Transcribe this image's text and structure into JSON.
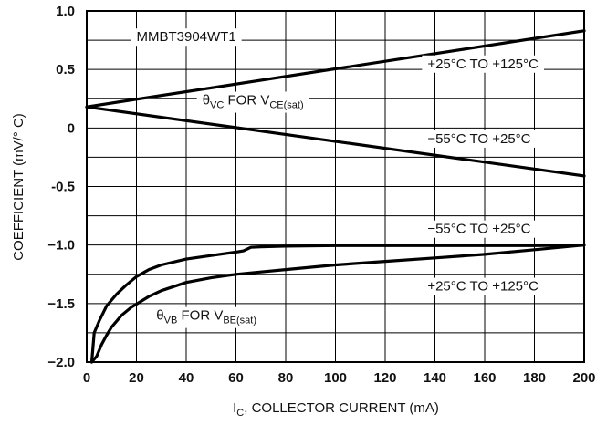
{
  "chart_data": {
    "type": "line",
    "xlabel": {
      "main": "I",
      "sub": "C",
      "rest": ", COLLECTOR CURRENT (mA)"
    },
    "ylabel": "COEFFICIENT (mV/° C)",
    "xlim": [
      0,
      200
    ],
    "ylim": [
      -2.0,
      1.0
    ],
    "x_ticks": [
      0,
      20,
      40,
      60,
      80,
      100,
      120,
      140,
      160,
      180,
      200
    ],
    "x_tick_labels": [
      "0",
      "20",
      "40",
      "60",
      "80",
      "100",
      "120",
      "140",
      "160",
      "180",
      "200"
    ],
    "y_ticks": [
      -2.0,
      -1.5,
      -1.0,
      -0.5,
      0,
      0.5,
      1.0
    ],
    "y_tick_labels": [
      "−2.0",
      "−1.5",
      "−1.0",
      "-0.5",
      "0",
      "0.5",
      "1.0"
    ],
    "grid": true,
    "series": [
      {
        "name": "θVC +25°C TO +125°C",
        "x": [
          0,
          200
        ],
        "y": [
          0.18,
          0.83
        ]
      },
      {
        "name": "θVC −55°C TO +25°C",
        "x": [
          0,
          200
        ],
        "y": [
          0.18,
          -0.41
        ]
      },
      {
        "name": "θVB −55°C TO +25°C",
        "x": [
          2,
          3,
          5,
          8,
          12,
          16,
          20,
          25,
          30,
          40,
          50,
          60,
          63,
          66,
          70,
          80,
          100,
          120,
          140,
          160,
          180,
          200
        ],
        "y": [
          -2.0,
          -1.75,
          -1.65,
          -1.52,
          -1.42,
          -1.34,
          -1.27,
          -1.21,
          -1.17,
          -1.12,
          -1.09,
          -1.06,
          -1.05,
          -1.02,
          -1.015,
          -1.01,
          -1.005,
          -1.005,
          -1.005,
          -1.005,
          -1.005,
          -1.0
        ]
      },
      {
        "name": "θVB +25°C TO +125°C",
        "x": [
          2,
          4,
          6,
          8,
          10,
          14,
          18,
          25,
          30,
          40,
          50,
          60,
          70,
          80,
          100,
          120,
          140,
          160,
          180,
          200
        ],
        "y": [
          -2.0,
          -1.95,
          -1.85,
          -1.77,
          -1.7,
          -1.6,
          -1.53,
          -1.44,
          -1.39,
          -1.32,
          -1.28,
          -1.25,
          -1.23,
          -1.21,
          -1.17,
          -1.14,
          -1.11,
          -1.08,
          -1.04,
          -1.0
        ]
      }
    ],
    "annotations": [
      {
        "key": "part",
        "text": "MMBT3904WT1",
        "x": 20,
        "y": 0.78
      },
      {
        "key": "vc_upper",
        "text": "+25°C TO +125°C",
        "x": 137,
        "y": 0.55
      },
      {
        "key": "vc_lower",
        "text": "−55°C TO +25°C",
        "x": 137,
        "y": -0.09
      },
      {
        "key": "vb_upper",
        "text": "−55°C TO +25°C",
        "x": 137,
        "y": -0.86
      },
      {
        "key": "vb_lower",
        "text": "+25°C TO +125°C",
        "x": 137,
        "y": -1.35
      }
    ],
    "labels": {
      "theta_vc": {
        "theta": "θ",
        "sub1": "VC",
        "mid": " FOR V",
        "sub2": "CE(sat)"
      },
      "theta_vb": {
        "theta": "θ",
        "sub1": "VB",
        "mid": " FOR V",
        "sub2": "BE(sat)"
      }
    }
  }
}
